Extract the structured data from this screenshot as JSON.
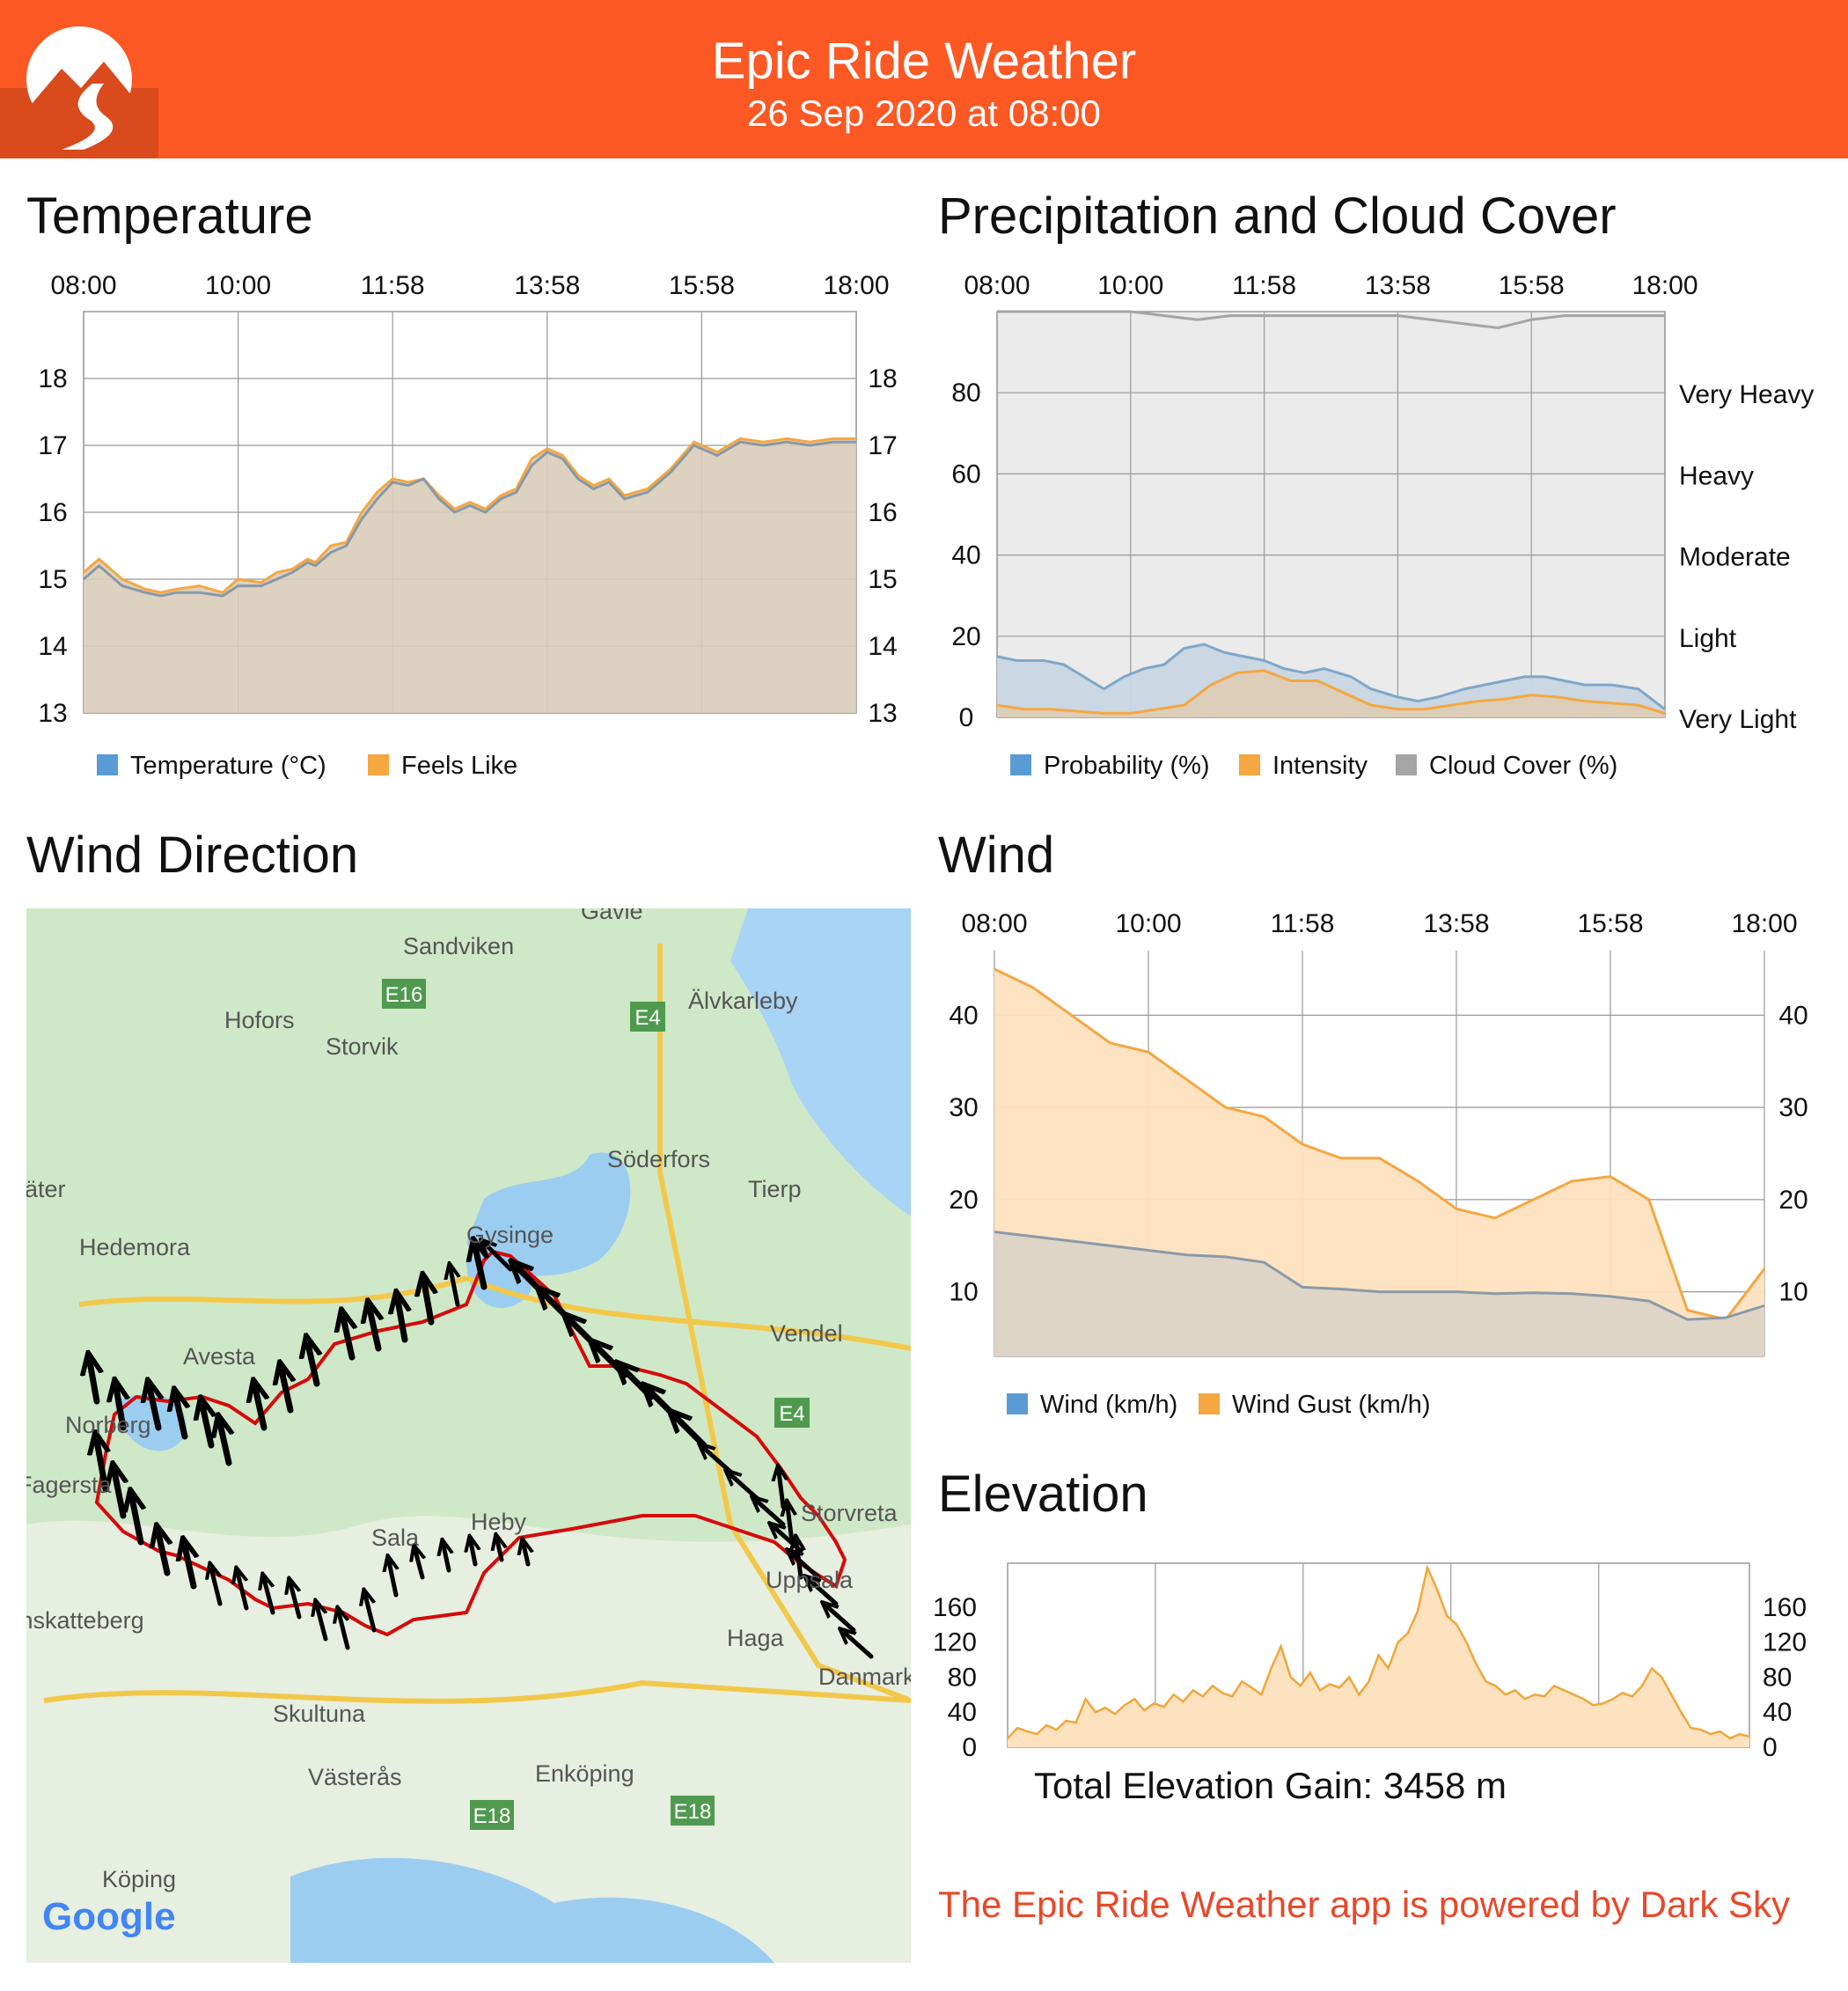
{
  "app": {
    "title": "Epic Ride Weather",
    "subtitle": "26 Sep 2020 at 08:00",
    "brand_color": "#fc5824",
    "footer": "The Epic Ride Weather app is powered by Dark Sky"
  },
  "sections": {
    "temperature": "Temperature",
    "precipitation": "Precipitation and Cloud Cover",
    "wind_direction": "Wind Direction",
    "wind": "Wind",
    "elevation": "Elevation"
  },
  "elevation_total": "Total Elevation Gain: 3458 m",
  "map": {
    "provider": "Google",
    "places": [
      "Gävle",
      "Sandviken",
      "Hofors",
      "Storvik",
      "Älvkarleby",
      "Söderfors",
      "Tierp",
      "Säter",
      "Hedemora",
      "Gysinge",
      "Vendel",
      "Avesta",
      "Norberg",
      "Fagersta",
      "Sala",
      "Heby",
      "Storvreta",
      "Uppsala",
      "Haga",
      "Danmark",
      "Skultuna",
      "Västerås",
      "Enköping",
      "Köping",
      "Skinnskatteberg"
    ],
    "roads": [
      "E16",
      "E4",
      "E4",
      "E18",
      "E18"
    ]
  },
  "chart_data": [
    {
      "id": "temperature",
      "type": "area",
      "x_ticks": [
        "08:00",
        "10:00",
        "11:58",
        "13:58",
        "15:58",
        "18:00"
      ],
      "y_ticks": [
        13,
        14,
        15,
        16,
        17,
        18
      ],
      "ylim": [
        13,
        19
      ],
      "legend": [
        "Temperature (°C)",
        "Feels Like"
      ],
      "colors": {
        "temperature": "#5b9bd5",
        "feels_like": "#f5a742"
      },
      "series": [
        {
          "name": "Temperature (°C)",
          "x": [
            0,
            0.2,
            0.5,
            0.8,
            1,
            1.2,
            1.5,
            1.8,
            2,
            2.3,
            2.5,
            2.7,
            2.9,
            3,
            3.2,
            3.4,
            3.6,
            3.8,
            4,
            4.2,
            4.4,
            4.6,
            4.8,
            5,
            5.2,
            5.4,
            5.6,
            5.8,
            6,
            6.2,
            6.4,
            6.6,
            6.8,
            7,
            7.3,
            7.6,
            7.9,
            8.2,
            8.5,
            8.8,
            9.1,
            9.4,
            9.7,
            10
          ],
          "values": [
            15.0,
            15.2,
            14.9,
            14.8,
            14.75,
            14.8,
            14.8,
            14.75,
            14.9,
            14.9,
            15.0,
            15.1,
            15.25,
            15.2,
            15.4,
            15.5,
            15.9,
            16.2,
            16.45,
            16.4,
            16.5,
            16.2,
            16.0,
            16.1,
            16.0,
            16.2,
            16.3,
            16.7,
            16.9,
            16.8,
            16.5,
            16.35,
            16.45,
            16.2,
            16.3,
            16.6,
            17.0,
            16.85,
            17.05,
            17.0,
            17.05,
            17.0,
            17.05,
            17.05
          ]
        },
        {
          "name": "Feels Like",
          "x": [
            0,
            0.2,
            0.5,
            0.8,
            1,
            1.2,
            1.5,
            1.8,
            2,
            2.3,
            2.5,
            2.7,
            2.9,
            3,
            3.2,
            3.4,
            3.6,
            3.8,
            4,
            4.2,
            4.4,
            4.6,
            4.8,
            5,
            5.2,
            5.4,
            5.6,
            5.8,
            6,
            6.2,
            6.4,
            6.6,
            6.8,
            7,
            7.3,
            7.6,
            7.9,
            8.2,
            8.5,
            8.8,
            9.1,
            9.4,
            9.7,
            10
          ],
          "values": [
            15.1,
            15.3,
            15.0,
            14.85,
            14.8,
            14.85,
            14.9,
            14.8,
            15.0,
            14.95,
            15.1,
            15.15,
            15.3,
            15.25,
            15.5,
            15.55,
            16.0,
            16.3,
            16.5,
            16.45,
            16.5,
            16.25,
            16.05,
            16.15,
            16.05,
            16.25,
            16.35,
            16.8,
            16.95,
            16.85,
            16.55,
            16.4,
            16.5,
            16.25,
            16.35,
            16.65,
            17.05,
            16.9,
            17.1,
            17.05,
            17.1,
            17.05,
            17.1,
            17.1
          ]
        }
      ]
    },
    {
      "id": "precipitation",
      "type": "area",
      "x_ticks": [
        "08:00",
        "10:00",
        "11:58",
        "13:58",
        "15:58",
        "18:00"
      ],
      "y_ticks": [
        0,
        20,
        40,
        60,
        80
      ],
      "ylim": [
        0,
        100
      ],
      "right_labels": [
        "Very Light",
        "Light",
        "Moderate",
        "Heavy",
        "Very Heavy"
      ],
      "legend": [
        "Probability (%)",
        "Intensity",
        "Cloud Cover (%)"
      ],
      "colors": {
        "probability": "#5b9bd5",
        "intensity": "#f5a742",
        "cloud": "#a5a5a5"
      },
      "series": [
        {
          "name": "Probability (%)",
          "x": [
            0,
            0.3,
            0.7,
            1,
            1.3,
            1.6,
            1.9,
            2.2,
            2.5,
            2.8,
            3.1,
            3.4,
            3.7,
            4,
            4.3,
            4.6,
            4.9,
            5.3,
            5.6,
            6,
            6.3,
            6.6,
            7,
            7.3,
            7.6,
            7.9,
            8.2,
            8.5,
            8.8,
            9.2,
            9.6,
            10
          ],
          "values": [
            15,
            14,
            14,
            13,
            10,
            7,
            10,
            12,
            13,
            17,
            18,
            16,
            15,
            14,
            12,
            11,
            12,
            10,
            7,
            5,
            4,
            5,
            7,
            8,
            9,
            10,
            10,
            9,
            8,
            8,
            7,
            2
          ]
        },
        {
          "name": "Intensity",
          "x": [
            0,
            0.4,
            0.8,
            1.2,
            1.6,
            2,
            2.4,
            2.8,
            3.2,
            3.6,
            4,
            4.4,
            4.8,
            5.2,
            5.6,
            6,
            6.4,
            6.8,
            7.2,
            7.6,
            8,
            8.4,
            8.8,
            9.2,
            9.6,
            10
          ],
          "values": [
            3,
            2,
            2,
            1.5,
            1,
            1,
            2,
            3,
            8,
            11,
            11.5,
            9,
            9,
            6,
            3,
            2,
            2,
            3,
            4,
            4.5,
            5.5,
            5,
            4,
            3.5,
            3,
            1
          ]
        },
        {
          "name": "Cloud Cover (%)",
          "x": [
            0,
            1,
            2,
            2.5,
            3,
            3.5,
            4,
            4.5,
            5,
            5.5,
            6,
            6.5,
            7,
            7.5,
            8,
            8.5,
            9,
            9.5,
            10
          ],
          "values": [
            100,
            100,
            100,
            99,
            98,
            99,
            99,
            99,
            99,
            99,
            99,
            98,
            97,
            96,
            98,
            99,
            99,
            99,
            99
          ]
        }
      ]
    },
    {
      "id": "wind",
      "type": "area",
      "x_ticks": [
        "08:00",
        "10:00",
        "11:58",
        "13:58",
        "15:58",
        "18:00"
      ],
      "y_ticks": [
        10,
        20,
        30,
        40
      ],
      "ylim": [
        3,
        47
      ],
      "legend": [
        "Wind (km/h)",
        "Wind Gust (km/h)"
      ],
      "colors": {
        "wind": "#5b9bd5",
        "gust": "#f5a742"
      },
      "series": [
        {
          "name": "Wind (km/h)",
          "x": [
            0,
            0.5,
            1,
            1.5,
            2,
            2.5,
            3,
            3.5,
            4,
            4.5,
            5,
            5.5,
            6,
            6.5,
            7,
            7.5,
            8,
            8.5,
            9,
            9.5,
            10
          ],
          "values": [
            16.5,
            16,
            15.5,
            15,
            14.5,
            14,
            13.8,
            13.2,
            10.5,
            10.3,
            10,
            10,
            10,
            9.8,
            9.9,
            9.8,
            9.5,
            9,
            7,
            7.2,
            8.5
          ]
        },
        {
          "name": "Wind Gust (km/h)",
          "x": [
            0,
            0.5,
            1,
            1.5,
            2,
            2.5,
            3,
            3.5,
            4,
            4.5,
            5,
            5.5,
            6,
            6.5,
            7,
            7.5,
            8,
            8.5,
            9,
            9.5,
            10
          ],
          "values": [
            45,
            43,
            40,
            37,
            36,
            33,
            30,
            29,
            26,
            24.5,
            24.5,
            22,
            19,
            18,
            20,
            22,
            22.5,
            20,
            8,
            7,
            12.5
          ]
        }
      ]
    },
    {
      "id": "elevation",
      "type": "area",
      "y_ticks": [
        0,
        40,
        80,
        120,
        160
      ],
      "ylim": [
        0,
        210
      ],
      "values": [
        10,
        22,
        18,
        15,
        25,
        20,
        30,
        28,
        55,
        40,
        45,
        38,
        48,
        55,
        42,
        50,
        46,
        60,
        52,
        65,
        58,
        70,
        62,
        58,
        75,
        68,
        60,
        90,
        115,
        80,
        70,
        85,
        65,
        72,
        68,
        80,
        60,
        75,
        105,
        90,
        120,
        130,
        155,
        205,
        180,
        150,
        140,
        120,
        95,
        75,
        70,
        60,
        65,
        55,
        60,
        58,
        70,
        65,
        60,
        55,
        48,
        50,
        55,
        62,
        58,
        70,
        90,
        80,
        60,
        40,
        22,
        20,
        15,
        18,
        10,
        15,
        12
      ]
    }
  ]
}
